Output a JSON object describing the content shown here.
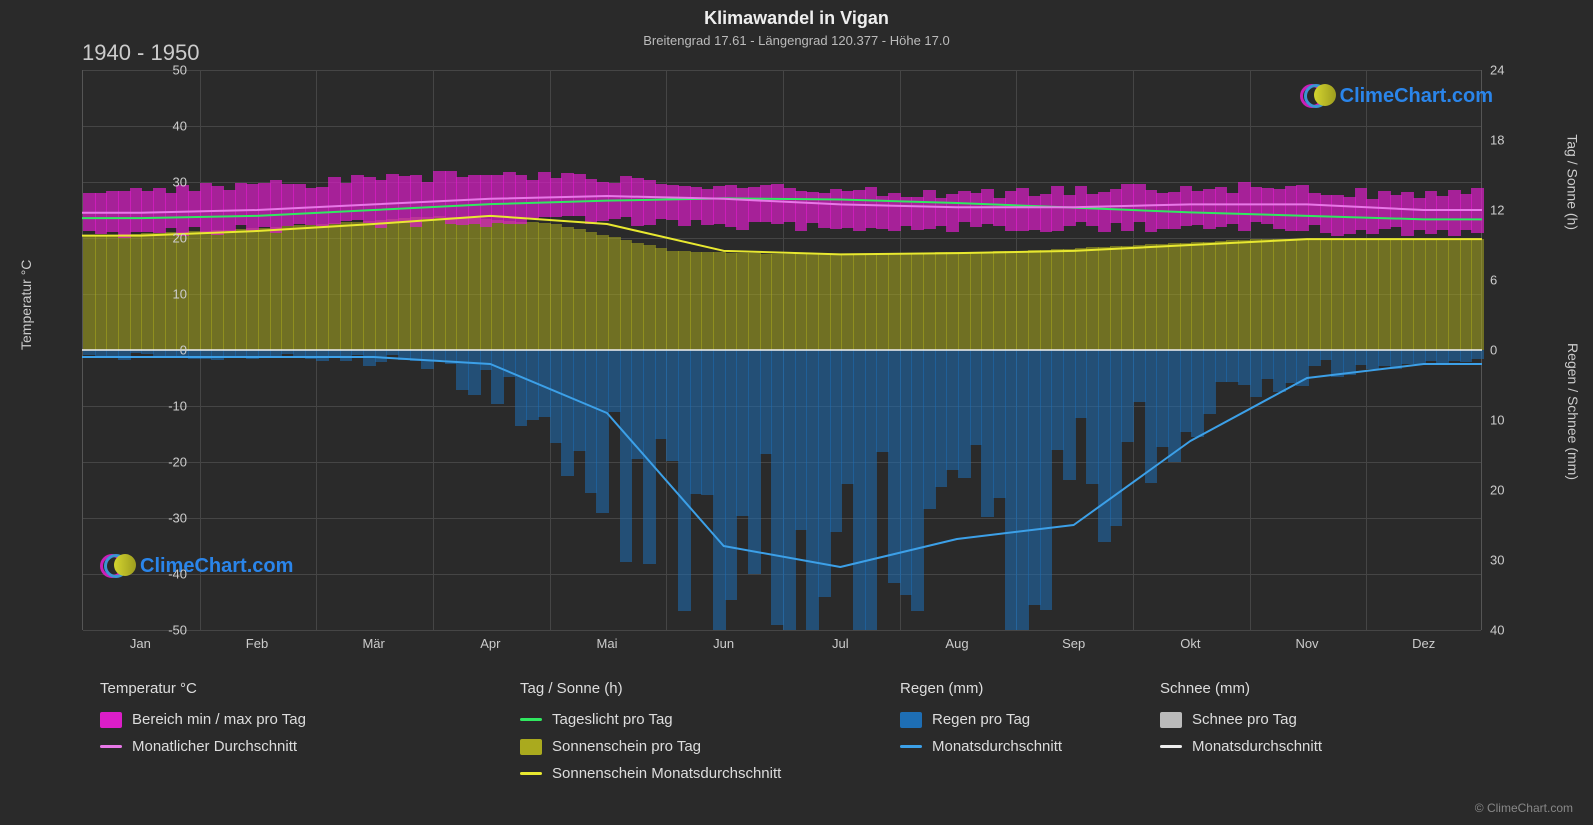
{
  "title": "Klimawandel in Vigan",
  "subtitle": "Breitengrad 17.61 - Längengrad 120.377 - Höhe 17.0",
  "period": "1940 - 1950",
  "watermark_text": "ClimeChart.com",
  "watermark_color": "#2a8fff",
  "copyright": "© ClimeChart.com",
  "axes": {
    "y_left_label": "Temperatur °C",
    "y_right_label_top": "Tag / Sonne (h)",
    "y_right_label_bottom": "Regen / Schnee (mm)",
    "y_left_min": -50,
    "y_left_max": 50,
    "y_left_step": 10,
    "y_right_top_min": 0,
    "y_right_top_max": 24,
    "y_right_top_step": 6,
    "y_right_bottom_min": 0,
    "y_right_bottom_max": 40,
    "y_right_bottom_step": 10,
    "months": [
      "Jan",
      "Feb",
      "Mär",
      "Apr",
      "Mai",
      "Jun",
      "Jul",
      "Aug",
      "Sep",
      "Okt",
      "Nov",
      "Dez"
    ]
  },
  "colors": {
    "background": "#2a2a2a",
    "grid": "#454545",
    "text": "#cccccc",
    "magenta_range": "#dc1ec8",
    "magenta_avg": "#e878e8",
    "green_daylight": "#30e860",
    "yellow_fill": "#aaaa1e",
    "yellow_line": "#e8e830",
    "blue_fill": "#1e6eb4",
    "blue_line": "#3ca0e8",
    "white_line": "#eeeeee",
    "grey_snow": "#bbbbbb"
  },
  "series": {
    "temp_min": [
      21,
      21,
      22,
      23,
      23,
      23,
      22,
      22,
      22,
      22,
      22,
      21
    ],
    "temp_max": [
      28,
      29,
      30,
      31,
      31,
      30,
      29,
      28,
      28,
      29,
      29,
      28
    ],
    "temp_avg": [
      24.5,
      25,
      26,
      27,
      27.5,
      27,
      26,
      25.5,
      25.5,
      26,
      26,
      25
    ],
    "daylight_h": [
      11.3,
      11.5,
      12,
      12.5,
      12.8,
      13,
      12.9,
      12.6,
      12.2,
      11.8,
      11.5,
      11.2
    ],
    "sunshine_h": [
      9.8,
      10.2,
      10.8,
      11.5,
      10.8,
      8.5,
      8.2,
      8.3,
      8.5,
      9,
      9.5,
      9.5
    ],
    "rain_mm": [
      1,
      1,
      1,
      2,
      9,
      28,
      31,
      27,
      25,
      13,
      4,
      2
    ],
    "snow_mm": [
      0,
      0,
      0,
      0,
      0,
      0,
      0,
      0,
      0,
      0,
      0,
      0
    ]
  },
  "legend": {
    "temp": {
      "title": "Temperatur °C",
      "items": [
        {
          "label": "Bereich min / max pro Tag",
          "type": "swatch",
          "color": "#dc1ec8"
        },
        {
          "label": "Monatlicher Durchschnitt",
          "type": "line",
          "color": "#e878e8"
        }
      ]
    },
    "sun": {
      "title": "Tag / Sonne (h)",
      "items": [
        {
          "label": "Tageslicht pro Tag",
          "type": "line",
          "color": "#30e860"
        },
        {
          "label": "Sonnenschein pro Tag",
          "type": "swatch",
          "color": "#aaaa1e"
        },
        {
          "label": "Sonnenschein Monatsdurchschnitt",
          "type": "line",
          "color": "#e8e830"
        }
      ]
    },
    "rain": {
      "title": "Regen (mm)",
      "items": [
        {
          "label": "Regen pro Tag",
          "type": "swatch",
          "color": "#1e6eb4"
        },
        {
          "label": "Monatsdurchschnitt",
          "type": "line",
          "color": "#3ca0e8"
        }
      ]
    },
    "snow": {
      "title": "Schnee (mm)",
      "items": [
        {
          "label": "Schnee pro Tag",
          "type": "swatch",
          "color": "#bbbbbb"
        },
        {
          "label": "Monatsdurchschnitt",
          "type": "line",
          "color": "#eeeeee"
        }
      ]
    }
  }
}
